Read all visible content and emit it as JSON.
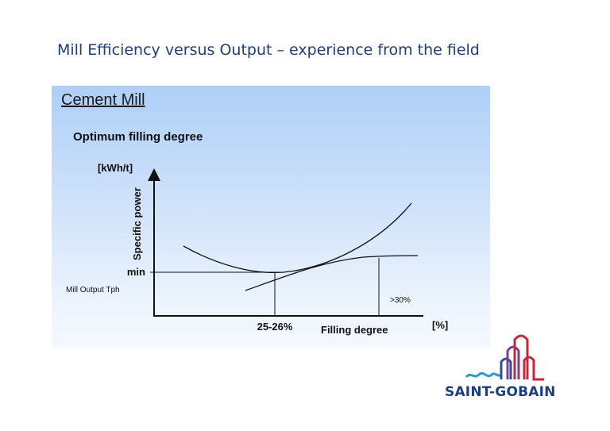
{
  "slide": {
    "title": "Mill Efficiency versus Output – experience from the field"
  },
  "panel": {
    "heading": "Cement Mill",
    "subheading": "Optimum filling degree",
    "background_top": "#aecff8",
    "background_bottom": "#f6f9fe"
  },
  "diagram": {
    "y_unit": "[kWh/t]",
    "y_label": "Specific power",
    "x_unit": "[%]",
    "x_label": "Filling degree",
    "min_label": "min",
    "output_label": "Mill Output Tph",
    "optimum_label": "25-26%",
    "threshold_label": ">30%",
    "curves": [
      "specific-power-curve",
      "mill-output-curve"
    ]
  },
  "logo": {
    "text": "SAINT-GOBAIN",
    "text_color": "#1e3e82",
    "wave_color": "#2a9bc7",
    "arch_colors": [
      "#c4273a",
      "#7a3f8f",
      "#2f4d9a"
    ]
  }
}
